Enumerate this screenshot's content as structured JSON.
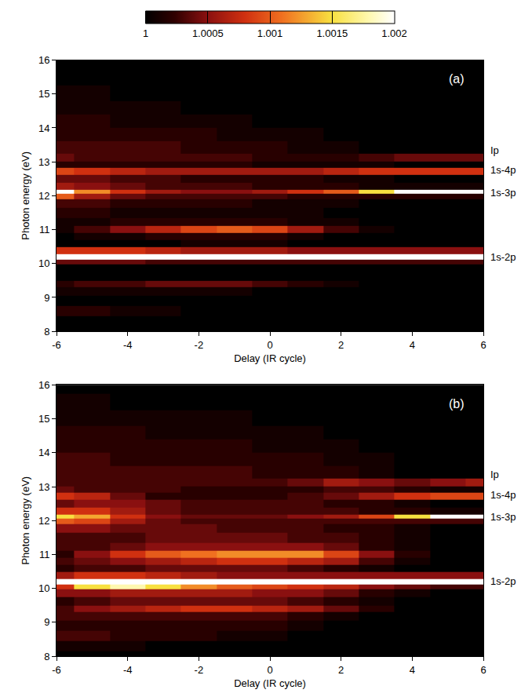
{
  "chart_data": [
    {
      "type": "heatmap",
      "panel": "(a)",
      "x_label": "Delay (IR cycle)",
      "y_label": "Photon energy (eV)",
      "xlim": [
        -6,
        6
      ],
      "xticks": [
        -6,
        -4,
        -2,
        0,
        2,
        4,
        6
      ],
      "ylim": [
        8,
        16
      ],
      "yticks": [
        8,
        9,
        10,
        11,
        12,
        13,
        14,
        15,
        16
      ],
      "line_labels": [
        {
          "text": "Ip",
          "y": 13.35
        },
        {
          "text": "1s-4p",
          "y": 12.75
        },
        {
          "text": "1s-3p",
          "y": 12.1
        },
        {
          "text": "1s-2p",
          "y": 10.2
        }
      ],
      "x": [
        -6,
        -5,
        -4,
        -3,
        -2,
        -1,
        0,
        1,
        2,
        3,
        4,
        5,
        6
      ],
      "y": [
        8,
        8.3,
        8.6,
        8.9,
        9.2,
        9.4,
        9.6,
        9.9,
        10.05,
        10.2,
        10.35,
        10.6,
        10.8,
        11,
        11.2,
        11.5,
        11.8,
        12,
        12.1,
        12.25,
        12.5,
        12.75,
        12.9,
        13.1,
        13.4,
        13.8,
        14.2,
        14.6,
        15,
        15.5,
        16
      ],
      "cells": [
        [
          1,
          1,
          1,
          1,
          1,
          1,
          1,
          1,
          1,
          1,
          1,
          1,
          1
        ],
        [
          1,
          1,
          1,
          1,
          1,
          1,
          1,
          1,
          1,
          1,
          1,
          1,
          1
        ],
        [
          1.0002,
          1.0002,
          1.0001,
          1.0001,
          1,
          1,
          1,
          1,
          1,
          1,
          1,
          1,
          1
        ],
        [
          1,
          1,
          1,
          1,
          1,
          1,
          1,
          1,
          1,
          1,
          1,
          1,
          1
        ],
        [
          1.0001,
          1.0001,
          1.0001,
          1.0001,
          1.0001,
          1.0001,
          1,
          1,
          1,
          1,
          1,
          1,
          1
        ],
        [
          1.0002,
          1.0003,
          1.0003,
          1.0004,
          1.0004,
          1.0004,
          1.0003,
          1.0002,
          1.0001,
          1,
          1,
          1,
          1
        ],
        [
          1,
          1,
          1,
          1,
          1,
          1,
          1,
          1,
          1,
          1,
          1,
          1,
          1
        ],
        [
          1,
          1,
          1,
          1,
          1,
          1,
          1,
          1,
          1,
          1,
          1,
          1,
          1
        ],
        [
          1.0004,
          1.0004,
          1.0004,
          1.0003,
          1.0003,
          1.0003,
          1.0003,
          1.0003,
          1.0003,
          1.0003,
          1.0003,
          1.0003,
          1.0003
        ],
        [
          1.002,
          1.002,
          1.002,
          1.002,
          1.002,
          1.002,
          1.002,
          1.002,
          1.002,
          1.002,
          1.002,
          1.002,
          1.002
        ],
        [
          1.0008,
          1.0008,
          1.0008,
          1.0007,
          1.0006,
          1.0006,
          1.0006,
          1.0005,
          1.0005,
          1.0005,
          1.0005,
          1.0005,
          1.0005
        ],
        [
          1,
          1,
          1,
          1,
          1.0001,
          1.0001,
          1.0001,
          1,
          1,
          1,
          1,
          1,
          1
        ],
        [
          1,
          1.0001,
          1.0001,
          1.0002,
          1.0002,
          1.0002,
          1.0002,
          1.0001,
          1,
          1,
          1,
          1,
          1
        ],
        [
          1.0001,
          1.0003,
          1.0005,
          1.0007,
          1.0009,
          1.001,
          1.0009,
          1.0006,
          1.0003,
          1.0001,
          1,
          1,
          1
        ],
        [
          1.0001,
          1.0001,
          1.0002,
          1.0002,
          1.0002,
          1.0002,
          1.0002,
          1.0001,
          1.0001,
          1,
          1,
          1,
          1
        ],
        [
          1.0002,
          1.0002,
          1.0001,
          1.0001,
          1.0001,
          1.0001,
          1.0001,
          1.0001,
          1,
          1,
          1,
          1,
          1
        ],
        [
          1.0003,
          1.0003,
          1.0002,
          1.0002,
          1.0002,
          1.0002,
          1.0001,
          1.0001,
          1.0001,
          1,
          1,
          1,
          1
        ],
        [
          1.001,
          1.0006,
          1.0004,
          1.0003,
          1.0003,
          1.0003,
          1.0003,
          1.0002,
          1.0002,
          1.0002,
          1.0002,
          1.0002,
          1.0002
        ],
        [
          1.002,
          1.0012,
          1.0008,
          1.0006,
          1.0005,
          1.0005,
          1.0006,
          1.0008,
          1.001,
          1.0015,
          1.002,
          1.002,
          1.002
        ],
        [
          1.0006,
          1.0005,
          1.0004,
          1.0003,
          1.0003,
          1.0003,
          1.0002,
          1.0002,
          1.0002,
          1.0001,
          1.0001,
          1.0001,
          1.0001
        ],
        [
          1.0004,
          1.0004,
          1.0003,
          1.0003,
          1.0002,
          1.0002,
          1.0002,
          1.0002,
          1.0001,
          1.0001,
          1,
          1,
          1
        ],
        [
          1.0009,
          1.0008,
          1.0007,
          1.0006,
          1.0006,
          1.0006,
          1.0006,
          1.0006,
          1.0007,
          1.0008,
          1.0008,
          1.0008,
          1.0008
        ],
        [
          1.0002,
          1.0002,
          1.0002,
          1.0002,
          1.0002,
          1.0002,
          1.0001,
          1.0001,
          1.0001,
          1.0001,
          1,
          1,
          1
        ],
        [
          1.0004,
          1.0003,
          1.0003,
          1.0003,
          1.0003,
          1.0003,
          1.0002,
          1.0002,
          1.0002,
          1.0003,
          1.0004,
          1.0004,
          1.0004
        ],
        [
          1.0003,
          1.0003,
          1.0003,
          1.0003,
          1.0002,
          1.0002,
          1.0002,
          1.0001,
          1.0001,
          1,
          1,
          1,
          1
        ],
        [
          1.0002,
          1.0002,
          1.0002,
          1.0002,
          1.0002,
          1.0001,
          1.0001,
          1.0001,
          1,
          1,
          1,
          1,
          1
        ],
        [
          1.0002,
          1.0002,
          1.0001,
          1.0001,
          1.0001,
          1.0001,
          1,
          1,
          1,
          1,
          1,
          1,
          1
        ],
        [
          1.0001,
          1.0001,
          1.0001,
          1.0001,
          1,
          1,
          1,
          1,
          1,
          1,
          1,
          1,
          1
        ],
        [
          1.0001,
          1.0001,
          1,
          1,
          1,
          1,
          1,
          1,
          1,
          1,
          1,
          1,
          1
        ],
        [
          1,
          1,
          1,
          1,
          1,
          1,
          1,
          1,
          1,
          1,
          1,
          1,
          1
        ],
        [
          1,
          1,
          1,
          1,
          1,
          1,
          1,
          1,
          1,
          1,
          1,
          1,
          1
        ]
      ]
    },
    {
      "type": "heatmap",
      "panel": "(b)",
      "x_label": "Delay (IR cycle)",
      "y_label": "Photon energy (eV)",
      "xlim": [
        -6,
        6
      ],
      "xticks": [
        -6,
        -4,
        -2,
        0,
        2,
        4,
        6
      ],
      "ylim": [
        8,
        16
      ],
      "yticks": [
        8,
        9,
        10,
        11,
        12,
        13,
        14,
        15,
        16
      ],
      "line_labels": [
        {
          "text": "Ip",
          "y": 13.35
        },
        {
          "text": "1s-4p",
          "y": 12.75
        },
        {
          "text": "1s-3p",
          "y": 12.1
        },
        {
          "text": "1s-2p",
          "y": 10.2
        }
      ],
      "x": [
        -6,
        -5,
        -4,
        -3,
        -2,
        -1,
        0,
        1,
        2,
        3,
        4,
        5,
        6
      ],
      "y": [
        8,
        8.3,
        8.6,
        8.9,
        9.2,
        9.4,
        9.6,
        9.9,
        10.05,
        10.2,
        10.35,
        10.6,
        10.8,
        11,
        11.2,
        11.5,
        11.8,
        12,
        12.1,
        12.25,
        12.5,
        12.75,
        12.9,
        13.1,
        13.4,
        13.8,
        14.2,
        14.6,
        15,
        15.5,
        16
      ],
      "cells": [
        [
          1,
          1,
          1,
          1,
          1,
          1,
          1,
          1,
          1,
          1,
          1,
          1,
          1
        ],
        [
          1.0001,
          1.0001,
          1.0001,
          1,
          1,
          1,
          1,
          1,
          1,
          1,
          1,
          1,
          1
        ],
        [
          1.0003,
          1.0003,
          1.0002,
          1.0002,
          1.0002,
          1.0001,
          1.0001,
          1,
          1,
          1,
          1,
          1,
          1
        ],
        [
          1.0002,
          1.0002,
          1.0002,
          1.0002,
          1.0002,
          1.0002,
          1.0002,
          1.0001,
          1,
          1,
          1,
          1,
          1
        ],
        [
          1.0003,
          1.0003,
          1.0003,
          1.0003,
          1.0003,
          1.0003,
          1.0003,
          1.0002,
          1.0001,
          1,
          1,
          1,
          1
        ],
        [
          1.0003,
          1.0005,
          1.0006,
          1.0007,
          1.0008,
          1.0008,
          1.0007,
          1.0006,
          1.0004,
          1.0002,
          1,
          1,
          1
        ],
        [
          1.0002,
          1.0003,
          1.0004,
          1.0004,
          1.0004,
          1.0004,
          1.0004,
          1.0003,
          1.0002,
          1.0001,
          1,
          1,
          1
        ],
        [
          1.0005,
          1.0005,
          1.0006,
          1.0006,
          1.0006,
          1.0006,
          1.0005,
          1.0005,
          1.0004,
          1.0002,
          1.0001,
          1,
          1
        ],
        [
          1.0008,
          1.0015,
          1.0018,
          1.0015,
          1.0012,
          1.001,
          1.0009,
          1.0008,
          1.0007,
          1.0005,
          1.0004,
          1.0003,
          1.0003
        ],
        [
          1.002,
          1.002,
          1.002,
          1.002,
          1.002,
          1.002,
          1.002,
          1.002,
          1.002,
          1.002,
          1.002,
          1.002,
          1.002
        ],
        [
          1.0006,
          1.0008,
          1.0008,
          1.0007,
          1.0006,
          1.0005,
          1.0005,
          1.0005,
          1.0005,
          1.0005,
          1.0005,
          1.0005,
          1.0005
        ],
        [
          1.0002,
          1.0003,
          1.0003,
          1.0004,
          1.0004,
          1.0004,
          1.0004,
          1.0003,
          1.0002,
          1.0001,
          1,
          1,
          1
        ],
        [
          1.0003,
          1.0004,
          1.0005,
          1.0006,
          1.0007,
          1.0008,
          1.0008,
          1.0007,
          1.0006,
          1.0003,
          1.0001,
          1,
          1
        ],
        [
          1.0002,
          1.0005,
          1.0008,
          1.001,
          1.0011,
          1.0012,
          1.0012,
          1.0012,
          1.0009,
          1.0005,
          1.0002,
          1,
          1
        ],
        [
          1.0003,
          1.0003,
          1.0004,
          1.0005,
          1.0005,
          1.0005,
          1.0005,
          1.0005,
          1.0004,
          1.0002,
          1.0001,
          1,
          1
        ],
        [
          1.0003,
          1.0003,
          1.0003,
          1.0004,
          1.0004,
          1.0004,
          1.0004,
          1.0003,
          1.0003,
          1.0002,
          1.0001,
          1,
          1
        ],
        [
          1.0005,
          1.0005,
          1.0004,
          1.0004,
          1.0004,
          1.0003,
          1.0003,
          1.0003,
          1.0002,
          1.0002,
          1.0001,
          1,
          1
        ],
        [
          1.001,
          1.0009,
          1.0006,
          1.0004,
          1.0003,
          1.0003,
          1.0003,
          1.0003,
          1.0003,
          1.0003,
          1.0003,
          1.0003,
          1.0003
        ],
        [
          1.0015,
          1.0013,
          1.0008,
          1.0005,
          1.0004,
          1.0004,
          1.0004,
          1.0005,
          1.0006,
          1.0009,
          1.0015,
          1.002,
          1.002
        ],
        [
          1.0008,
          1.0008,
          1.0006,
          1.0004,
          1.0003,
          1.0003,
          1.0003,
          1.0003,
          1.0003,
          1.0002,
          1.0002,
          1.0001,
          1.0001
        ],
        [
          1.0004,
          1.0005,
          1.0005,
          1.0004,
          1.0003,
          1.0003,
          1.0003,
          1.0003,
          1.0002,
          1.0002,
          1.0001,
          1,
          1
        ],
        [
          1.0008,
          1.0007,
          1.0004,
          1.0002,
          1.0002,
          1.0002,
          1.0002,
          1.0003,
          1.0004,
          1.0006,
          1.0008,
          1.0009,
          1.0009
        ],
        [
          1.0004,
          1.0003,
          1.0003,
          1.0003,
          1.0002,
          1.0002,
          1.0002,
          1.0002,
          1.0003,
          1.0003,
          1.0002,
          1.0001,
          1.0001
        ],
        [
          1.0003,
          1.0003,
          1.0003,
          1.0003,
          1.0003,
          1.0003,
          1.0003,
          1.0004,
          1.0006,
          1.0005,
          1.0004,
          1.0005,
          1.0006
        ],
        [
          1.0003,
          1.0003,
          1.0003,
          1.0003,
          1.0003,
          1.0003,
          1.0002,
          1.0002,
          1.0002,
          1.0001,
          1,
          1,
          1
        ],
        [
          1.0003,
          1.0003,
          1.0002,
          1.0002,
          1.0002,
          1.0002,
          1.0002,
          1.0002,
          1.0001,
          1.0001,
          1,
          1,
          1
        ],
        [
          1.0002,
          1.0002,
          1.0002,
          1.0002,
          1.0002,
          1.0002,
          1.0001,
          1.0001,
          1.0001,
          1,
          1,
          1,
          1
        ],
        [
          1.0002,
          1.0002,
          1.0002,
          1.0001,
          1.0001,
          1.0001,
          1.0001,
          1.0001,
          1,
          1,
          1,
          1,
          1
        ],
        [
          1.0001,
          1.0001,
          1.0001,
          1.0001,
          1.0001,
          1.0001,
          1,
          1,
          1,
          1,
          1,
          1,
          1
        ],
        [
          1.0001,
          1.0001,
          1,
          1,
          1,
          1,
          1,
          1,
          1,
          1,
          1,
          1,
          1
        ],
        [
          1,
          1,
          1,
          1,
          1,
          1,
          1,
          1,
          1,
          1,
          1,
          1,
          1
        ]
      ]
    }
  ],
  "colorbar": {
    "range": [
      1,
      1.002
    ],
    "ticks": [
      1,
      1.0005,
      1.001,
      1.0015,
      1.002
    ]
  }
}
